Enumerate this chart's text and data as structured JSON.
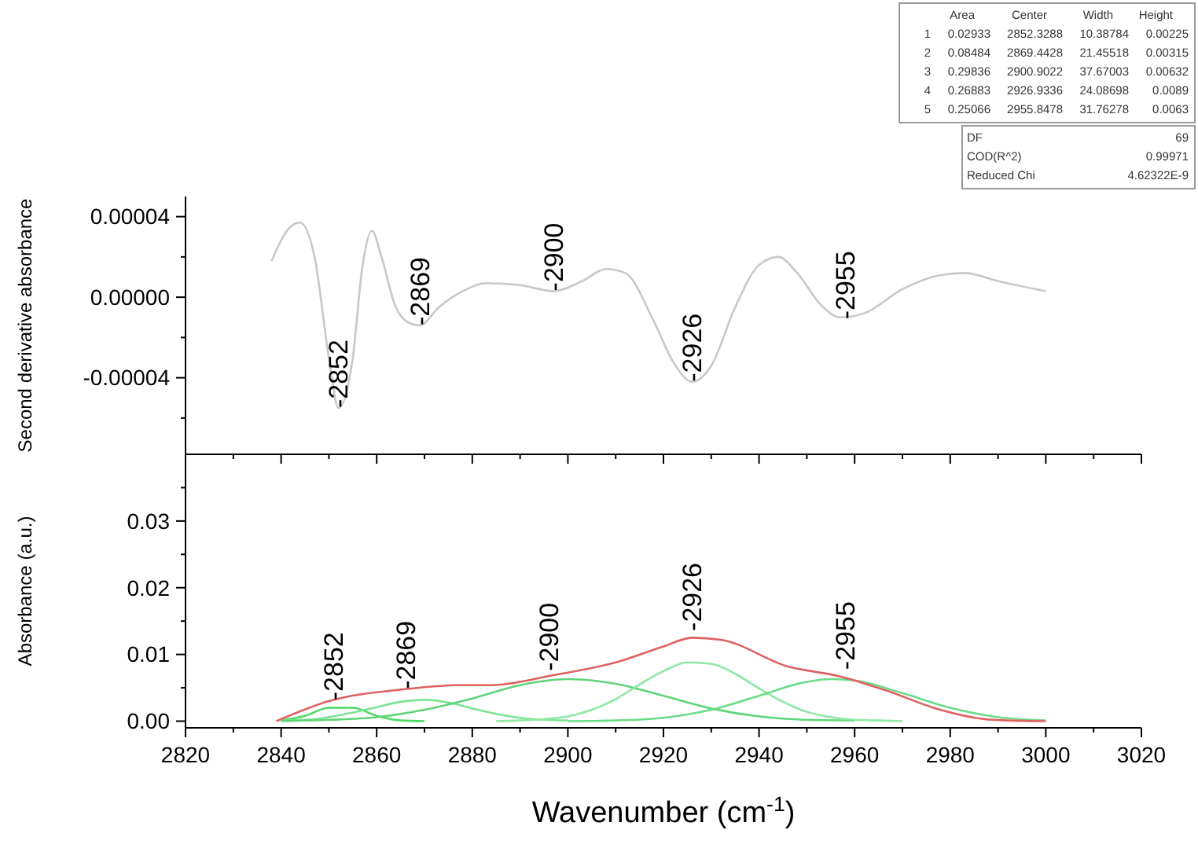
{
  "chart_data": [
    {
      "type": "line",
      "ylabel": "Second derivative absorbance",
      "xlim": [
        2820,
        3020
      ],
      "ylim": [
        -7.8e-05,
        5e-05
      ],
      "tick_labels": "y",
      "yticks": [
        {
          "value": 4e-05,
          "label": "0.00004"
        },
        {
          "value": 2e-05,
          "label": null
        },
        {
          "value": 0,
          "label": "0.00000"
        },
        {
          "value": -2e-05,
          "label": null
        },
        {
          "value": -4e-05,
          "label": "-0.00004"
        },
        {
          "value": -6e-05,
          "label": null
        }
      ],
      "series": [
        {
          "color": "#c8c8c8",
          "x": [
            2838,
            2842,
            2844,
            2847,
            2850,
            2852,
            2855,
            2857,
            2859,
            2861,
            2864,
            2867,
            2869,
            2873,
            2878,
            2883,
            2890,
            2897,
            2903,
            2908,
            2912,
            2918,
            2922,
            2926,
            2930,
            2935,
            2940,
            2944,
            2948,
            2953,
            2957,
            2962,
            2970,
            2978,
            2983,
            2990,
            3000
          ],
          "values": [
            1.8e-05,
            3.5e-05,
            3.7e-05,
            2e-05,
            -3e-05,
            -5.5e-05,
            -3e-05,
            1.5e-05,
            3.3e-05,
            2e-05,
            -5e-06,
            -1.3e-05,
            -1.4e-05,
            -5e-06,
            3e-06,
            7e-06,
            6e-06,
            3e-06,
            8e-06,
            1.4e-05,
            1.2e-05,
            -1.2e-05,
            -3.2e-05,
            -4.2e-05,
            -3.4e-05,
            -5e-06,
            1.6e-05,
            2e-05,
            1.2e-05,
            -4e-06,
            -1e-05,
            -8e-06,
            4e-06,
            1.1e-05,
            1.2e-05,
            8e-06,
            3e-06
          ]
        }
      ],
      "annotations": [
        {
          "text": "-2852",
          "x": 2852,
          "y": -5.5e-05
        },
        {
          "text": "-2869",
          "x": 2869,
          "y": -1.4e-05
        },
        {
          "text": "-2900",
          "x": 2897,
          "y": 3e-06
        },
        {
          "text": "-2926",
          "x": 2926,
          "y": -4.2e-05
        },
        {
          "text": "-2955",
          "x": 2958,
          "y": -1.1e-05
        },
        "Area",
        "Center",
        "Width",
        "Height",
        "1",
        "0.02933",
        "2852.3288",
        "10.38784",
        "0.00225",
        "2",
        "0.08484",
        "2869.4428",
        "21.45518",
        "0.00315",
        "3",
        "0.29836",
        "2900.9022",
        "37.67003",
        "0.00632",
        "4",
        "0.26883",
        "2926.9336",
        "24.08698",
        "0.0089",
        "5",
        "0.25066",
        "2955.8478",
        "31.76278",
        "0.0063",
        "DF",
        "69",
        "COD(R^2)",
        "0.99971",
        "Reduced Chi",
        "4.62322E-9"
      ]
    },
    {
      "type": "line",
      "ylabel": "Absorbance (a.u.)",
      "xlabel": "Wavenumber (cm$^{-1}$)",
      "xlim": [
        2820,
        3020
      ],
      "ylim": [
        -0.001,
        0.04
      ],
      "xticks": [
        2820,
        {
          "value": 2830,
          "label": null
        },
        2840,
        {
          "value": 2850,
          "label": null
        },
        2860,
        {
          "value": 2870,
          "label": null
        },
        2880,
        {
          "value": 2890,
          "label": null
        },
        2900,
        {
          "value": 2910,
          "label": null
        },
        2920,
        {
          "value": 2930,
          "label": null
        },
        2940,
        {
          "value": 2950,
          "label": null
        },
        2960,
        {
          "value": 2970,
          "label": null
        },
        2980,
        {
          "value": 2990,
          "label": null
        },
        3000,
        {
          "value": 3010,
          "label": null
        },
        3020
      ],
      "yticks": [
        {
          "value": 0,
          "label": "0.00"
        },
        {
          "value": 0.005,
          "label": null
        },
        {
          "value": 0.01,
          "label": "0.01"
        },
        {
          "value": 0.015,
          "label": null
        },
        {
          "value": 0.02,
          "label": "0.02"
        },
        {
          "value": 0.025,
          "label": null
        },
        {
          "value": 0.03,
          "label": "0.03"
        },
        {
          "value": 0.035,
          "label": null
        }
      ],
      "series": [
        {
          "color": "#4cd964",
          "x": [
            2840,
            2845,
            2850,
            2855,
            2860,
            2865,
            2870
          ],
          "values": [
            0.0001,
            0.0008,
            0.002,
            0.002,
            0.0008,
            0.0001,
            0
          ]
        },
        {
          "color": "#7be495",
          "x": [
            2840,
            2845,
            2850,
            2855,
            2860,
            2865,
            2870,
            2875,
            2880,
            2885,
            2890,
            2895,
            2900
          ],
          "values": [
            0.0001,
            0.0002,
            0.0006,
            0.0013,
            0.0021,
            0.0029,
            0.0032,
            0.0028,
            0.0019,
            0.0011,
            0.0005,
            0.0002,
            0.0001
          ]
        },
        {
          "color": "#5fd47a",
          "x": [
            2840,
            2850,
            2860,
            2870,
            2880,
            2890,
            2900,
            2910,
            2920,
            2930,
            2940,
            2950,
            2960
          ],
          "values": [
            0,
            0.0002,
            0.0006,
            0.0017,
            0.0034,
            0.0054,
            0.0063,
            0.0056,
            0.0038,
            0.0019,
            0.0007,
            0.0002,
            0.0001
          ]
        },
        {
          "color": "#8ee8a4",
          "x": [
            2885,
            2890,
            2895,
            2900,
            2905,
            2910,
            2915,
            2920,
            2925,
            2930,
            2935,
            2940,
            2945,
            2950,
            2955,
            2960,
            2965,
            2970
          ],
          "values": [
            0,
            0.0001,
            0.0003,
            0.0007,
            0.0017,
            0.0033,
            0.0055,
            0.0075,
            0.0088,
            0.0086,
            0.0071,
            0.0049,
            0.0029,
            0.0014,
            0.0006,
            0.0002,
            0.0001,
            0
          ]
        },
        {
          "color": "#6bdc88",
          "x": [
            2900,
            2910,
            2920,
            2930,
            2940,
            2950,
            2955,
            2960,
            2970,
            2980,
            2990,
            3000
          ],
          "values": [
            0,
            0.0001,
            0.0005,
            0.0017,
            0.0038,
            0.0059,
            0.0063,
            0.0061,
            0.0042,
            0.002,
            0.0006,
            0.0001
          ]
        },
        {
          "color": "#e06060",
          "x": [
            2839,
            2850,
            2866,
            2877,
            2884,
            2897,
            2910,
            2920,
            2926,
            2932,
            2946,
            2957,
            2967,
            2977,
            2989,
            3000
          ],
          "values": [
            0,
            0.003,
            0.0048,
            0.0054,
            0.0054,
            0.0069,
            0.0088,
            0.0112,
            0.0125,
            0.0122,
            0.0082,
            0.0067,
            0.0045,
            0.0019,
            0.0002,
            0
          ]
        }
      ],
      "annotations": [
        {
          "text": "-2852",
          "x": 2851,
          "y": 0.0031
        },
        {
          "text": "-2869",
          "x": 2866,
          "y": 0.0048
        },
        {
          "text": "-2900",
          "x": 2896,
          "y": 0.0075
        },
        {
          "text": "-2926",
          "x": 2926,
          "y": 0.0135
        },
        {
          "text": "-2955",
          "x": 2958,
          "y": 0.0077
        }
      ]
    }
  ]
}
